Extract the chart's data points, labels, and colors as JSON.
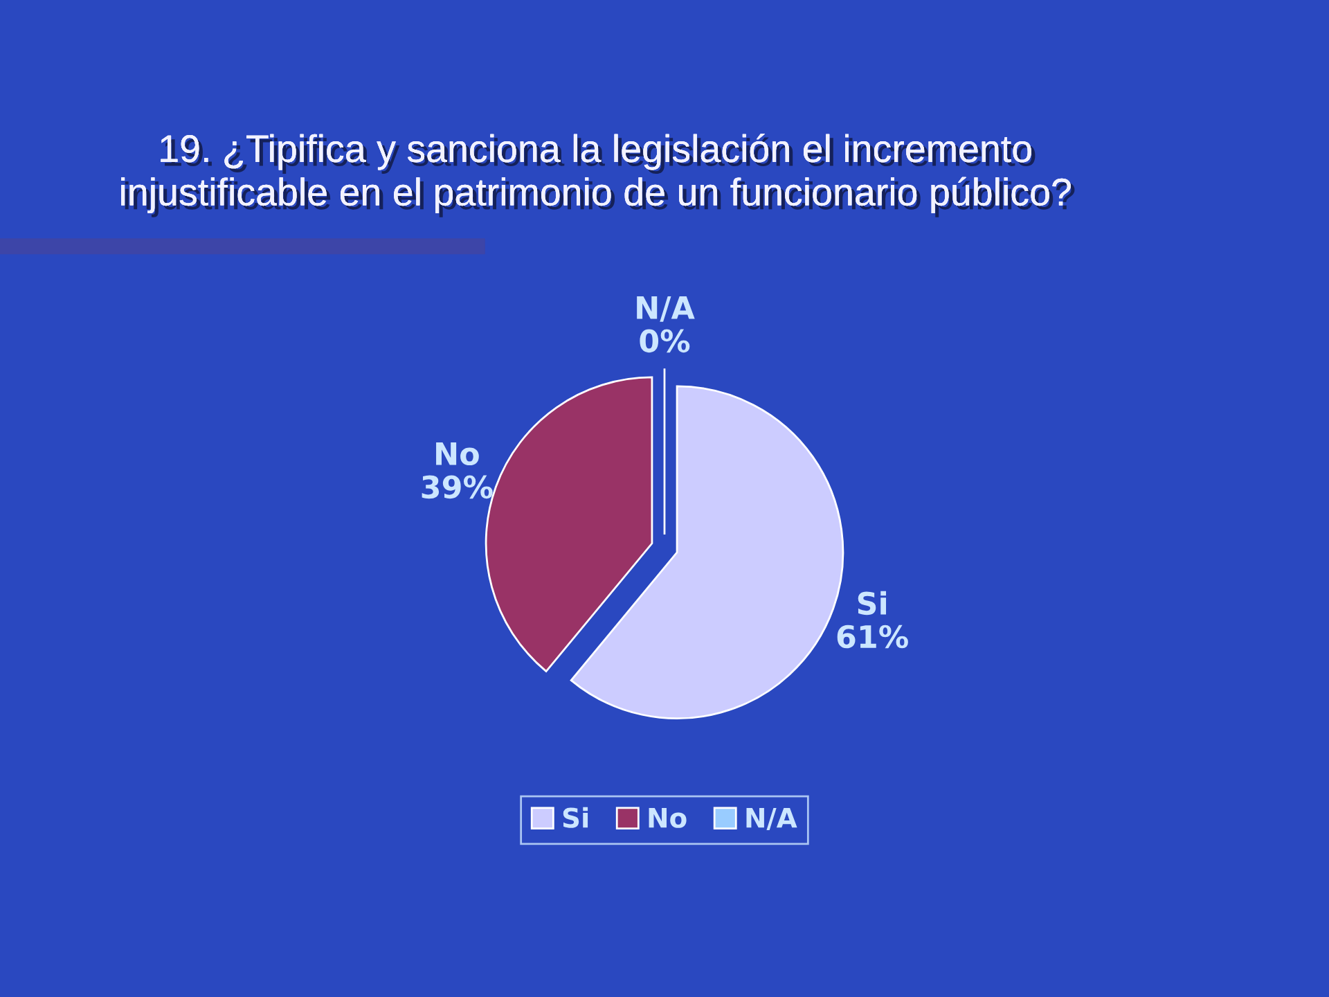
{
  "chart_data": {
    "type": "pie",
    "title": "19. ¿Tipifica y sanciona la legislación el incremento\ninjustificable en el patrimonio de un funcionario público?",
    "categories": [
      "Si",
      "No",
      "N/A"
    ],
    "values": [
      61,
      39,
      0
    ],
    "colors": [
      "#ccccff",
      "#993366",
      "#99ccff"
    ],
    "value_labels": [
      "61%",
      "39%",
      "0%"
    ],
    "legend": "bottom"
  }
}
